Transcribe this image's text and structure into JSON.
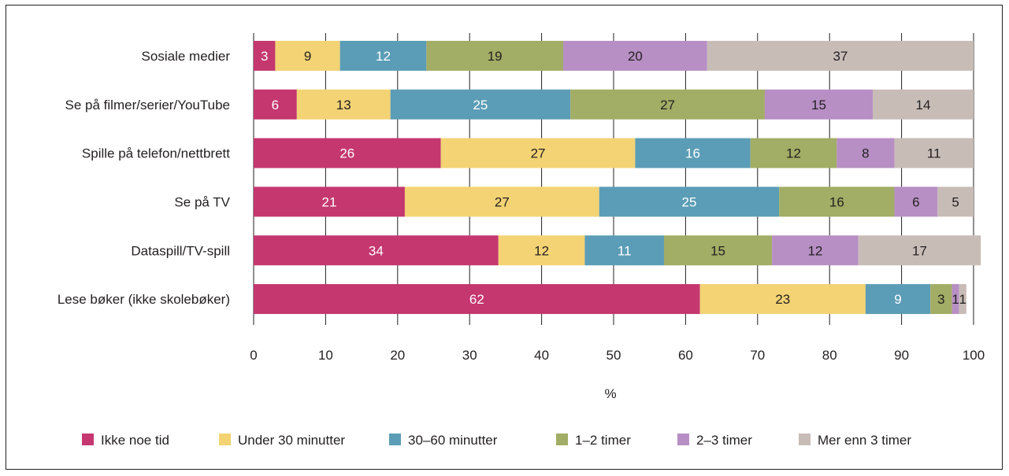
{
  "chart_data": {
    "type": "bar",
    "orientation": "horizontal",
    "stacked": true,
    "title": "",
    "xlabel": "%",
    "ylabel": "",
    "xlim": [
      0,
      100
    ],
    "xticks": [
      "0",
      "10",
      "20",
      "30",
      "40",
      "50",
      "60",
      "70",
      "80",
      "90",
      "100"
    ],
    "grid": "vertical",
    "legend_position": "bottom",
    "categories": [
      "Sosiale medier",
      "Se på filmer/serier/YouTube",
      "Spille på telefon/nettbrett",
      "Se på TV",
      "Dataspill/TV-spill",
      "Lese bøker (ikke skolebøker)"
    ],
    "series": [
      {
        "name": "Ikke noe tid",
        "color": "#c4376f",
        "label_color": "#ffffff",
        "values": [
          3,
          6,
          26,
          21,
          34,
          62
        ]
      },
      {
        "name": "Under 30 minutter",
        "color": "#f3d374",
        "label_color": "#231f20",
        "values": [
          9,
          13,
          27,
          27,
          12,
          23
        ]
      },
      {
        "name": "30–60 minutter",
        "color": "#5b9db6",
        "label_color": "#ffffff",
        "values": [
          12,
          25,
          16,
          25,
          11,
          9
        ]
      },
      {
        "name": "1–2 timer",
        "color": "#a2ad65",
        "label_color": "#231f20",
        "values": [
          19,
          27,
          12,
          16,
          15,
          3
        ]
      },
      {
        "name": "2–3 timer",
        "color": "#b78fc4",
        "label_color": "#231f20",
        "values": [
          20,
          15,
          8,
          6,
          12,
          1
        ]
      },
      {
        "name": "Mer enn 3 timer",
        "color": "#c8bcb7",
        "label_color": "#231f20",
        "values": [
          37,
          14,
          11,
          5,
          17,
          1
        ]
      }
    ]
  }
}
